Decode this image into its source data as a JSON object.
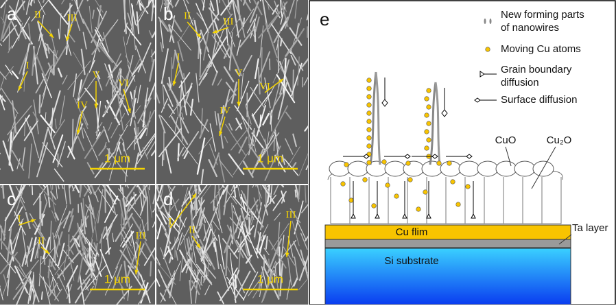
{
  "panels": [
    {
      "label": "a",
      "scale_bar": "1 μm",
      "annotations": [
        "II",
        "III",
        "I",
        "V",
        "VI",
        "IV"
      ]
    },
    {
      "label": "b",
      "scale_bar": "1 μm",
      "annotations": [
        "II",
        "III",
        "I",
        "V",
        "VI",
        "IV"
      ]
    },
    {
      "label": "c",
      "scale_bar": "1 μm",
      "annotations": [
        "I",
        "II",
        "III"
      ]
    },
    {
      "label": "d",
      "scale_bar": "1 μm",
      "annotations": [
        "I",
        "II",
        "III"
      ]
    }
  ],
  "schematic": {
    "label": "e",
    "legend": [
      {
        "lines": [
          "New forming parts",
          "of nanowires"
        ]
      },
      {
        "lines": [
          "Moving Cu atoms"
        ]
      },
      {
        "lines": [
          "Grain boundary",
          "diffusion"
        ]
      },
      {
        "lines": [
          "Surface diffusion"
        ]
      }
    ],
    "labels": {
      "cuo": "CuO",
      "cu2o": "Cu₂O",
      "ta": "Ta layer",
      "cu": "Cu flim",
      "si": "Si substrate"
    }
  }
}
